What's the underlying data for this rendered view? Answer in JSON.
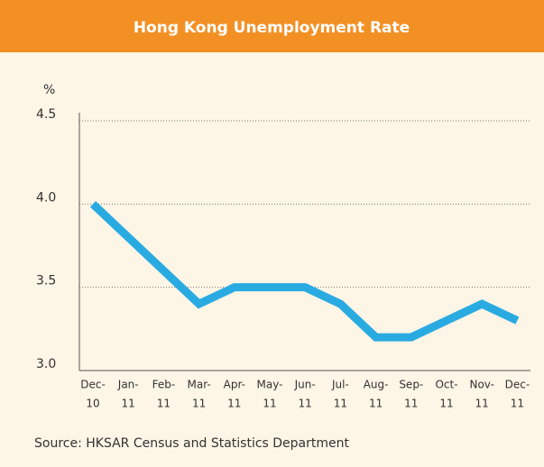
{
  "chart_data": {
    "type": "line",
    "title": "Hong Kong Unemployment Rate",
    "y_label": "%",
    "categories": [
      [
        "Dec-",
        "10"
      ],
      [
        "Jan-",
        "11"
      ],
      [
        "Feb-",
        "11"
      ],
      [
        "Mar-",
        "11"
      ],
      [
        "Apr-",
        "11"
      ],
      [
        "May-",
        "11"
      ],
      [
        "Jun-",
        "11"
      ],
      [
        "Jul-",
        "11"
      ],
      [
        "Aug-",
        "11"
      ],
      [
        "Sep-",
        "11"
      ],
      [
        "Oct-",
        "11"
      ],
      [
        "Nov-",
        "11"
      ],
      [
        "Dec-",
        "11"
      ]
    ],
    "series": [
      {
        "name": "Unemployment rate",
        "color": "#29abe2",
        "values": [
          4.0,
          3.8,
          3.6,
          3.4,
          3.5,
          3.5,
          3.5,
          3.4,
          3.2,
          3.2,
          3.3,
          3.4,
          3.3
        ]
      }
    ],
    "ylim": [
      3.0,
      4.5
    ],
    "yticks": [
      {
        "value": 3,
        "label": "3.0"
      },
      {
        "value": 3.5,
        "label": "3.5"
      },
      {
        "value": 4,
        "label": "4.0"
      },
      {
        "value": 4.5,
        "label": "4.5"
      }
    ],
    "grid": true,
    "source": "Source: HKSAR Census and Statistics Department"
  }
}
